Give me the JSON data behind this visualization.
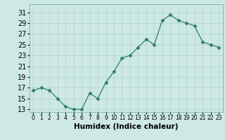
{
  "x": [
    0,
    1,
    2,
    3,
    4,
    5,
    6,
    7,
    8,
    9,
    10,
    11,
    12,
    13,
    14,
    15,
    16,
    17,
    18,
    19,
    20,
    21,
    22,
    23
  ],
  "y": [
    16.5,
    17.0,
    16.5,
    15.0,
    13.5,
    13.0,
    13.0,
    16.0,
    15.0,
    18.0,
    20.0,
    22.5,
    23.0,
    24.5,
    26.0,
    25.0,
    29.5,
    30.5,
    29.5,
    29.0,
    28.5,
    25.5,
    25.0,
    24.5
  ],
  "line_color": "#2e7d6e",
  "marker": "D",
  "marker_size": 2.5,
  "bg_color": "#cde8e5",
  "grid_color": "#b0d4d0",
  "xlabel": "Humidex (Indice chaleur)",
  "yticks": [
    13,
    15,
    17,
    19,
    21,
    23,
    25,
    27,
    29,
    31
  ],
  "xtick_labels": [
    "0",
    "1",
    "2",
    "3",
    "4",
    "5",
    "6",
    "7",
    "8",
    "9",
    "10",
    "11",
    "12",
    "13",
    "14",
    "15",
    "16",
    "17",
    "18",
    "19",
    "20",
    "21",
    "22",
    "23"
  ],
  "ylim": [
    12.5,
    32.5
  ],
  "xlim": [
    -0.5,
    23.5
  ],
  "xlabel_fontsize": 7.5,
  "ytick_fontsize": 7,
  "xtick_fontsize": 5.5
}
